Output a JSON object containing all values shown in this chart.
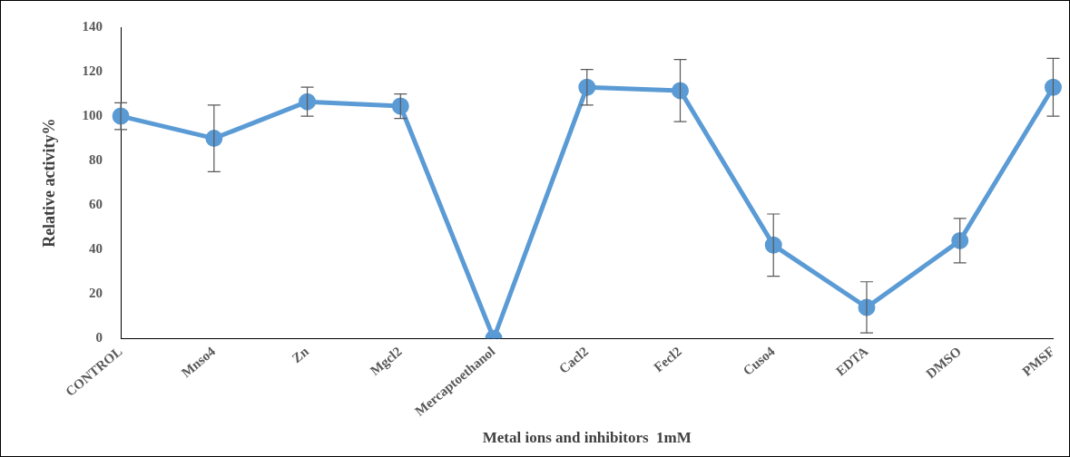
{
  "chart_data": {
    "type": "line",
    "xlabel": "Metal ions and inhibitors  1mM",
    "ylabel": "Relative activity%",
    "categories": [
      "CONTROL",
      "Mnso4",
      "Zn",
      "Mgcl2",
      "Mercaptoethanol",
      "Cacl2",
      "Fecl2",
      "Cuso4",
      "EDTA",
      "DMSO",
      "PMSF"
    ],
    "series": [
      {
        "color": "#5b9bd5",
        "values": [
          100,
          90,
          106.5,
          104.5,
          0,
          113,
          111.5,
          42,
          14,
          44,
          113
        ],
        "errors": [
          6,
          15,
          6.5,
          5.5,
          null,
          8,
          14,
          14,
          11.5,
          10,
          13
        ]
      }
    ],
    "ylim": [
      0,
      140
    ],
    "yticks": [
      0,
      20,
      40,
      60,
      80,
      100,
      120,
      140
    ],
    "grid": false,
    "legend": false,
    "marker": "circle",
    "line_style": "solid"
  }
}
